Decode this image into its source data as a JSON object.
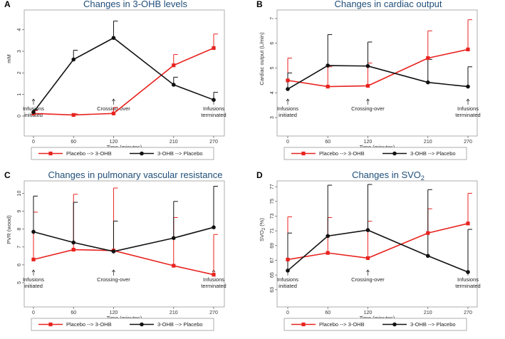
{
  "colors": {
    "red": "#e8231f",
    "black": "#111111",
    "title": "#1f4e79",
    "frame": "#9a9a9a"
  },
  "chart_data": [
    {
      "type": "line",
      "panel": "A",
      "title": "Changes in 3-OHB levels",
      "xlabel": "Time (minutes)",
      "ylabel": "mM",
      "x": [
        0,
        60,
        120,
        210,
        270
      ],
      "x_tick_labels": [
        "0",
        "60",
        "120",
        "210",
        "270"
      ],
      "y_ticks": [
        0,
        1,
        2,
        3,
        4
      ],
      "ylim": [
        -0.3,
        4.75
      ],
      "annotations": [
        {
          "x": 0,
          "lines": [
            "Infusions",
            "initiated"
          ]
        },
        {
          "x": 120,
          "lines": [
            "Crossing-over"
          ]
        },
        {
          "x": 270,
          "lines": [
            "Infusions",
            "terminated"
          ]
        }
      ],
      "legend": [
        "Placebo --> 3-OHB",
        "3-OHB --> Placebo"
      ],
      "series": [
        {
          "name": "Placebo --> 3-OHB",
          "color": "red",
          "marker": "square",
          "values": [
            0.12,
            0.05,
            0.12,
            2.35,
            3.15
          ],
          "error_upper": [
            0.25,
            0.1,
            0.4,
            2.85,
            3.8
          ]
        },
        {
          "name": "3-OHB --> Placebo",
          "color": "black",
          "marker": "circle",
          "values": [
            0.18,
            2.62,
            3.62,
            1.45,
            0.75
          ],
          "error_upper": [
            0.3,
            3.05,
            4.4,
            1.8,
            1.1
          ]
        }
      ]
    },
    {
      "type": "line",
      "panel": "B",
      "title": "Changes in cardiac output",
      "xlabel": "Time (minutes)",
      "ylabel": "Cardiac output (L/min)",
      "x": [
        0,
        60,
        120,
        210,
        270
      ],
      "x_tick_labels": [
        "0",
        "60",
        "120",
        "210",
        "270"
      ],
      "y_ticks": [
        3,
        4,
        5,
        6,
        7
      ],
      "ylim": [
        2.8,
        7.2
      ],
      "annotations": [
        {
          "x": 0,
          "lines": [
            "Infusions",
            "initiated"
          ]
        },
        {
          "x": 120,
          "lines": [
            "Crossing-over"
          ]
        },
        {
          "x": 270,
          "lines": [
            "Infusions",
            "terminated"
          ]
        }
      ],
      "legend": [
        "Placebo --> 3-OHB",
        "3-OHB --> Placebo"
      ],
      "series": [
        {
          "name": "Placebo --> 3-OHB",
          "color": "red",
          "marker": "square",
          "values": [
            4.5,
            4.25,
            4.28,
            5.4,
            5.75
          ],
          "error_upper": [
            5.4,
            5.05,
            5.2,
            6.5,
            6.95
          ]
        },
        {
          "name": "3-OHB --> Placebo",
          "color": "black",
          "marker": "circle",
          "values": [
            4.15,
            5.1,
            5.08,
            4.42,
            4.25
          ],
          "error_upper": [
            4.8,
            6.35,
            6.05,
            5.35,
            5.05
          ]
        }
      ]
    },
    {
      "type": "line",
      "panel": "C",
      "title": "Changes in pulmonary vascular resistance",
      "xlabel": "Time (minutes)",
      "ylabel": "PVR (wood)",
      "x": [
        0,
        60,
        120,
        210,
        270
      ],
      "x_tick_labels": [
        "0",
        "60",
        "120",
        "210",
        "270"
      ],
      "y_ticks": [
        5,
        6,
        7,
        8,
        9,
        10
      ],
      "ylim": [
        4.4,
        10.5
      ],
      "annotations": [
        {
          "x": 0,
          "lines": [
            "Infusions",
            "initiated"
          ]
        },
        {
          "x": 120,
          "lines": [
            "Crossing-over"
          ]
        },
        {
          "x": 270,
          "lines": [
            "Infusions",
            "terminated"
          ]
        }
      ],
      "legend": [
        "Placebo --> 3-OHB",
        "3-OHB --> Placebo"
      ],
      "series": [
        {
          "name": "Placebo --> 3-OHB",
          "color": "red",
          "marker": "square",
          "values": [
            6.3,
            6.85,
            6.8,
            5.95,
            5.45
          ],
          "error_upper": [
            8.95,
            9.95,
            10.3,
            8.65,
            7.7
          ]
        },
        {
          "name": "3-OHB --> Placebo",
          "color": "black",
          "marker": "circle",
          "values": [
            7.85,
            7.25,
            6.75,
            7.5,
            8.1
          ],
          "error_upper": [
            9.85,
            9.5,
            8.45,
            9.55,
            10.4
          ]
        }
      ]
    },
    {
      "type": "line",
      "panel": "D",
      "title": "Changes in SVO",
      "title_subscript": "2",
      "xlabel": "Time (minutes)",
      "ylabel": "SVO",
      "ylabel_subscript": "2",
      "ylabel_suffix": " (%)",
      "x": [
        0,
        60,
        120,
        210,
        270
      ],
      "x_tick_labels": [
        "0",
        "60",
        "120",
        "210",
        "270"
      ],
      "y_ticks": [
        63,
        65,
        67,
        69,
        71,
        73,
        75,
        77
      ],
      "ylim": [
        62.5,
        77.3
      ],
      "annotations": [
        {
          "x": 0,
          "lines": [
            "Infusions",
            "initiated"
          ]
        },
        {
          "x": 120,
          "lines": [
            "Crossing-over"
          ]
        },
        {
          "x": 270,
          "lines": [
            "Infusions",
            "terminated"
          ]
        }
      ],
      "legend": [
        "Placebo --> 3-OHB",
        "3-OHB --> Placebo"
      ],
      "series": [
        {
          "name": "Placebo --> 3-OHB",
          "color": "red",
          "marker": "square",
          "values": [
            67.1,
            68,
            67.3,
            70.7,
            72
          ],
          "error_upper": [
            72.9,
            72.8,
            72.3,
            74,
            76.1
          ]
        },
        {
          "name": "3-OHB --> Placebo",
          "color": "black",
          "marker": "circle",
          "values": [
            65.6,
            70.3,
            71.1,
            67.6,
            65.4
          ],
          "error_upper": [
            70.7,
            77.2,
            77.3,
            76.6,
            71.2
          ]
        }
      ]
    }
  ]
}
